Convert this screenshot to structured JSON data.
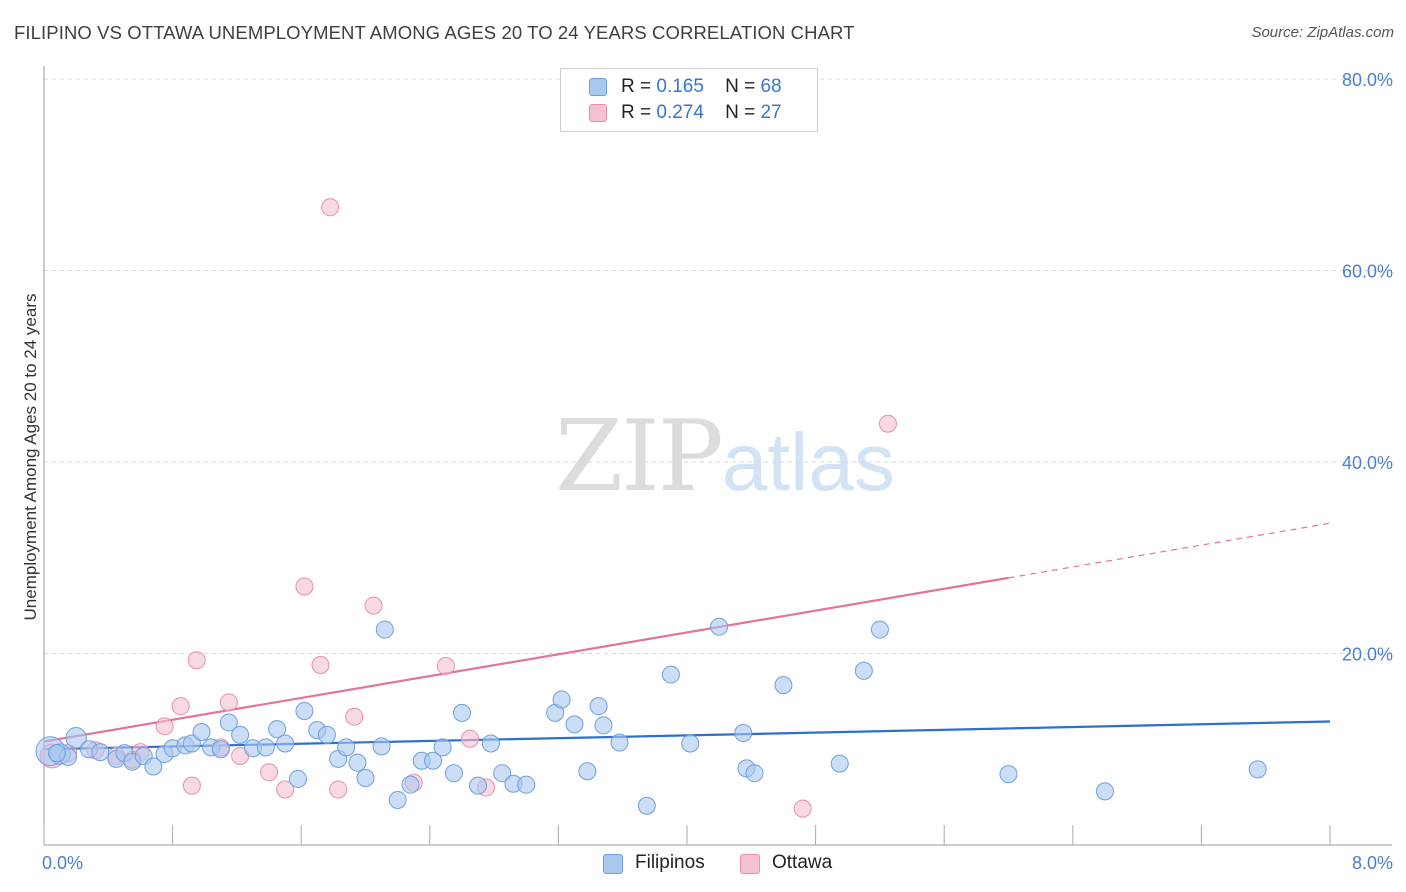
{
  "title": "FILIPINO VS OTTAWA UNEMPLOYMENT AMONG AGES 20 TO 24 YEARS CORRELATION CHART",
  "source": "Source: ZipAtlas.com",
  "watermark": {
    "zip": "ZIP",
    "atlas": "atlas"
  },
  "legend": {
    "filipinos": {
      "r_label": "R =",
      "r_value": "0.165",
      "n_label": "N =",
      "n_value": "68"
    },
    "ottawa": {
      "r_label": "R =",
      "r_value": "0.274",
      "n_label": "N =",
      "n_value": "27"
    }
  },
  "bottom_legend": {
    "filipinos": "Filipinos",
    "ottawa": "Ottawa"
  },
  "colors": {
    "filipinos_fill": "#a9c8f0",
    "filipinos_stroke": "#6f9fe0",
    "filipinos_line": "#2f6fd0",
    "ottawa_fill": "#f5c0d0",
    "ottawa_stroke": "#e98fac",
    "ottawa_line": "#e2739a",
    "tick_text": "#4a7fd1",
    "grid": "#d8d8d8"
  },
  "chart_data": {
    "type": "scatter",
    "title": "FILIPINO VS OTTAWA UNEMPLOYMENT AMONG AGES 20 TO 24 YEARS CORRELATION CHART",
    "xlabel": "",
    "ylabel": "Unemployment Among Ages 20 to 24 years",
    "xlim": [
      0,
      8
    ],
    "ylim": [
      0,
      80
    ],
    "x_tick_labels": [
      "0.0%",
      "8.0%"
    ],
    "y_ticks": [
      20,
      40,
      60,
      80
    ],
    "y_tick_labels": [
      "20.0%",
      "40.0%",
      "60.0%",
      "80.0%"
    ],
    "grid": true,
    "series": [
      {
        "name": "Filipinos",
        "r": 0.165,
        "n": 68,
        "trend": {
          "x": [
            0,
            8
          ],
          "y": [
            10.0,
            12.9
          ]
        },
        "points": [
          [
            0.04,
            9.8,
            1.7
          ],
          [
            0.1,
            9.5,
            1.2
          ],
          [
            0.15,
            9.2,
            1.0
          ],
          [
            0.2,
            11.2,
            1.2
          ],
          [
            0.28,
            10.0,
            1.0
          ],
          [
            0.35,
            9.7,
            1.0
          ],
          [
            0.45,
            9.0,
            1.0
          ],
          [
            0.5,
            9.6,
            1.0
          ],
          [
            0.55,
            8.7,
            1.0
          ],
          [
            0.62,
            9.3,
            1.0
          ],
          [
            0.68,
            8.2,
            1.0
          ],
          [
            0.75,
            9.5,
            1.0
          ],
          [
            0.8,
            10.1,
            1.0
          ],
          [
            0.88,
            10.4,
            1.0
          ],
          [
            0.92,
            10.6,
            1.0
          ],
          [
            0.98,
            11.8,
            1.0
          ],
          [
            1.04,
            10.2,
            1.0
          ],
          [
            1.1,
            10.0,
            1.0
          ],
          [
            1.15,
            12.8,
            1.0
          ],
          [
            1.22,
            11.5,
            1.0
          ],
          [
            1.3,
            10.1,
            1.0
          ],
          [
            1.38,
            10.2,
            1.0
          ],
          [
            1.45,
            12.1,
            1.0
          ],
          [
            1.5,
            10.6,
            1.0
          ],
          [
            1.58,
            6.9,
            1.0
          ],
          [
            1.62,
            14.0,
            1.0
          ],
          [
            1.7,
            12.0,
            1.0
          ],
          [
            1.76,
            11.5,
            1.0
          ],
          [
            1.83,
            9.0,
            1.0
          ],
          [
            1.88,
            10.2,
            1.0
          ],
          [
            1.95,
            8.6,
            1.0
          ],
          [
            2.0,
            7.0,
            1.0
          ],
          [
            2.1,
            10.3,
            1.0
          ],
          [
            2.12,
            22.5,
            1.0
          ],
          [
            2.2,
            4.7,
            1.0
          ],
          [
            2.28,
            6.3,
            1.0
          ],
          [
            2.35,
            8.8,
            1.0
          ],
          [
            2.42,
            8.8,
            1.0
          ],
          [
            2.48,
            10.2,
            1.0
          ],
          [
            2.55,
            7.5,
            1.0
          ],
          [
            2.6,
            13.8,
            1.0
          ],
          [
            2.7,
            6.2,
            1.0
          ],
          [
            2.78,
            10.6,
            1.0
          ],
          [
            2.85,
            7.5,
            1.0
          ],
          [
            2.92,
            6.4,
            1.0
          ],
          [
            3.0,
            6.3,
            1.0
          ],
          [
            3.18,
            13.8,
            1.0
          ],
          [
            3.22,
            15.2,
            1.0
          ],
          [
            3.3,
            12.6,
            1.0
          ],
          [
            3.38,
            7.7,
            1.0
          ],
          [
            3.45,
            14.5,
            1.0
          ],
          [
            3.48,
            12.5,
            1.0
          ],
          [
            3.58,
            10.7,
            1.0
          ],
          [
            3.75,
            4.1,
            1.0
          ],
          [
            3.9,
            17.8,
            1.0
          ],
          [
            4.02,
            10.6,
            1.0
          ],
          [
            4.2,
            22.8,
            1.0
          ],
          [
            4.35,
            11.7,
            1.0
          ],
          [
            4.37,
            8.0,
            1.0
          ],
          [
            4.42,
            7.5,
            1.0
          ],
          [
            4.6,
            16.7,
            1.0
          ],
          [
            4.95,
            8.5,
            1.0
          ],
          [
            5.1,
            18.2,
            1.0
          ],
          [
            5.2,
            22.5,
            1.0
          ],
          [
            6.0,
            7.4,
            1.0
          ],
          [
            6.6,
            5.6,
            1.0
          ],
          [
            7.55,
            7.9,
            1.0
          ],
          [
            0.08,
            9.6,
            1.0
          ]
        ]
      },
      {
        "name": "Ottawa",
        "r": 0.274,
        "n": 27,
        "trend": {
          "x": [
            0,
            6.0
          ],
          "y": [
            10.8,
            27.9
          ]
        },
        "trend_dashed": {
          "x": [
            6.0,
            8.0
          ],
          "y": [
            27.9,
            33.6
          ]
        },
        "points": [
          [
            0.05,
            9.3,
            1.4
          ],
          [
            0.15,
            9.6,
            1.0
          ],
          [
            0.32,
            9.9,
            1.0
          ],
          [
            0.45,
            9.3,
            1.0
          ],
          [
            0.6,
            9.7,
            1.0
          ],
          [
            0.75,
            12.4,
            1.0
          ],
          [
            0.85,
            14.5,
            1.0
          ],
          [
            0.92,
            6.2,
            1.0
          ],
          [
            0.95,
            19.3,
            1.0
          ],
          [
            1.15,
            14.9,
            1.0
          ],
          [
            1.22,
            9.3,
            1.0
          ],
          [
            1.4,
            7.6,
            1.0
          ],
          [
            1.5,
            5.8,
            1.0
          ],
          [
            1.62,
            27.0,
            1.0
          ],
          [
            1.72,
            18.8,
            1.0
          ],
          [
            1.78,
            66.6,
            1.0
          ],
          [
            1.83,
            5.8,
            1.0
          ],
          [
            1.93,
            13.4,
            1.0
          ],
          [
            2.05,
            25.0,
            1.0
          ],
          [
            2.3,
            6.5,
            1.0
          ],
          [
            2.5,
            18.7,
            1.0
          ],
          [
            2.65,
            11.1,
            1.0
          ],
          [
            2.75,
            6.0,
            1.0
          ],
          [
            4.72,
            3.8,
            1.0
          ],
          [
            5.25,
            44.0,
            1.0
          ],
          [
            0.55,
            8.9,
            1.0
          ],
          [
            1.1,
            10.2,
            1.0
          ]
        ]
      }
    ]
  }
}
